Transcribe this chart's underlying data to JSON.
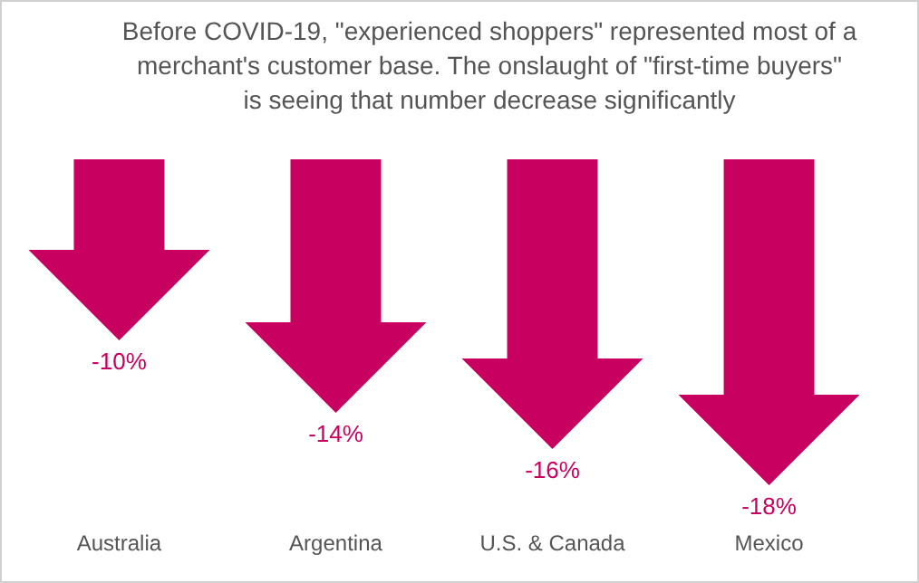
{
  "chart_data": {
    "type": "bar",
    "title": "Before COVID-19, \"experienced shoppers\" represented most of a merchant's customer base. The onslaught of \"first-time buyers\" is seeing that number decrease significantly",
    "categories": [
      "Australia",
      "Argentina",
      "U.S. & Canada",
      "Mexico"
    ],
    "values": [
      -10,
      -14,
      -16,
      -18
    ],
    "color": "#c8005f",
    "value_labels": [
      "-10%",
      "-14%",
      "-16%",
      "-18%"
    ]
  }
}
